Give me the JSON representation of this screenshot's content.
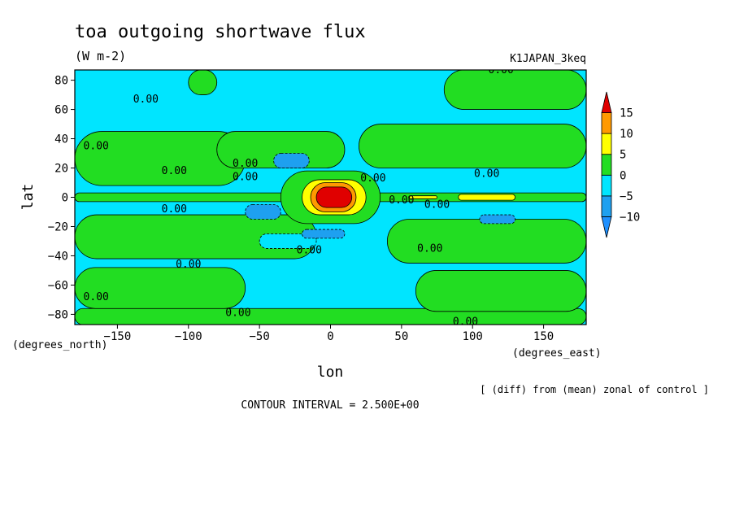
{
  "chart_data": {
    "type": "heatmap",
    "title": "toa outgoing shortwave flux",
    "units": "(W m-2)",
    "run_label": "K1JAPAN_3keq",
    "xlabel": "lon",
    "ylabel": "lat",
    "x_unit_label": "(degrees_east)",
    "y_unit_label": "(degrees_north)",
    "xlim": [
      -180,
      180
    ],
    "ylim": [
      -87,
      87
    ],
    "x_ticks": [
      -150,
      -100,
      -50,
      0,
      50,
      100,
      150
    ],
    "x_tick_labels": [
      "−150",
      "−100",
      "−50",
      "0",
      "50",
      "100",
      "150"
    ],
    "y_ticks": [
      80,
      60,
      40,
      20,
      0,
      -20,
      -40,
      -60,
      -80
    ],
    "y_tick_labels": [
      "80",
      "60",
      "40",
      "20",
      "0",
      "−20",
      "−40",
      "−60",
      "−80"
    ],
    "colorbar": {
      "levels": [
        -10,
        -5,
        0,
        5,
        10,
        15
      ],
      "level_labels": [
        "−10",
        "−5",
        "0",
        "5",
        "10",
        "15"
      ],
      "bins": [
        {
          "range": [
            -15,
            -10
          ],
          "color": "#1e90ff"
        },
        {
          "range": [
            -10,
            -5
          ],
          "color": "#1ea0f0"
        },
        {
          "range": [
            -5,
            0
          ],
          "color": "#00e5ff"
        },
        {
          "range": [
            0,
            5
          ],
          "color": "#22dd22"
        },
        {
          "range": [
            5,
            10
          ],
          "color": "#ffff00"
        },
        {
          "range": [
            10,
            15
          ],
          "color": "#ff9900"
        },
        {
          "range": [
            15,
            20
          ],
          "color": "#e00000"
        }
      ]
    },
    "contour_label": "0.00",
    "contour_interval_text": "CONTOUR INTERVAL = 2.500E+00",
    "annotation": "[ (diff) from (mean) zonal of control ]",
    "regions": [
      {
        "value": 2.5,
        "lon": [
          -180,
          180
        ],
        "lat": [
          -87,
          -76
        ]
      },
      {
        "value": 2.5,
        "lon": [
          60,
          180
        ],
        "lat": [
          -78,
          -50
        ]
      },
      {
        "value": 2.5,
        "lon": [
          -180,
          -60
        ],
        "lat": [
          -76,
          -48
        ]
      },
      {
        "value": 2.5,
        "lon": [
          -180,
          -10
        ],
        "lat": [
          -42,
          -12
        ]
      },
      {
        "value": 2.5,
        "lon": [
          40,
          180
        ],
        "lat": [
          -45,
          -15
        ]
      },
      {
        "value": 2.5,
        "lon": [
          -180,
          -60
        ],
        "lat": [
          8,
          45
        ]
      },
      {
        "value": 2.5,
        "lon": [
          -80,
          10
        ],
        "lat": [
          20,
          45
        ]
      },
      {
        "value": 2.5,
        "lon": [
          20,
          180
        ],
        "lat": [
          20,
          50
        ]
      },
      {
        "value": 2.5,
        "lon": [
          80,
          180
        ],
        "lat": [
          60,
          87
        ]
      },
      {
        "value": 2.5,
        "lon": [
          -100,
          -80
        ],
        "lat": [
          70,
          87
        ]
      },
      {
        "value": 2.5,
        "lon": [
          -180,
          180
        ],
        "lat": [
          -3,
          3
        ]
      },
      {
        "value": 2.5,
        "lon": [
          -35,
          35
        ],
        "lat": [
          -18,
          18
        ]
      },
      {
        "value": -2.5,
        "lon": [
          -50,
          -10
        ],
        "lat": [
          -35,
          -25
        ]
      },
      {
        "value": -7.5,
        "lon": [
          -40,
          -15
        ],
        "lat": [
          20,
          30
        ]
      },
      {
        "value": -7.5,
        "lon": [
          -60,
          -35
        ],
        "lat": [
          -15,
          -5
        ]
      },
      {
        "value": -7.5,
        "lon": [
          -20,
          10
        ],
        "lat": [
          -28,
          -22
        ]
      },
      {
        "value": -7.5,
        "lon": [
          105,
          130
        ],
        "lat": [
          -18,
          -12
        ]
      },
      {
        "value": 7.5,
        "lon": [
          -20,
          25
        ],
        "lat": [
          -12,
          12
        ]
      },
      {
        "value": 12.5,
        "lon": [
          -14,
          18
        ],
        "lat": [
          -10,
          10
        ]
      },
      {
        "value": 17.5,
        "lon": [
          -10,
          15
        ],
        "lat": [
          -7,
          7
        ]
      },
      {
        "value": 7.5,
        "lon": [
          90,
          130
        ],
        "lat": [
          -2,
          2
        ]
      },
      {
        "value": 7.5,
        "lon": [
          55,
          75
        ],
        "lat": [
          -1,
          1
        ]
      }
    ]
  }
}
